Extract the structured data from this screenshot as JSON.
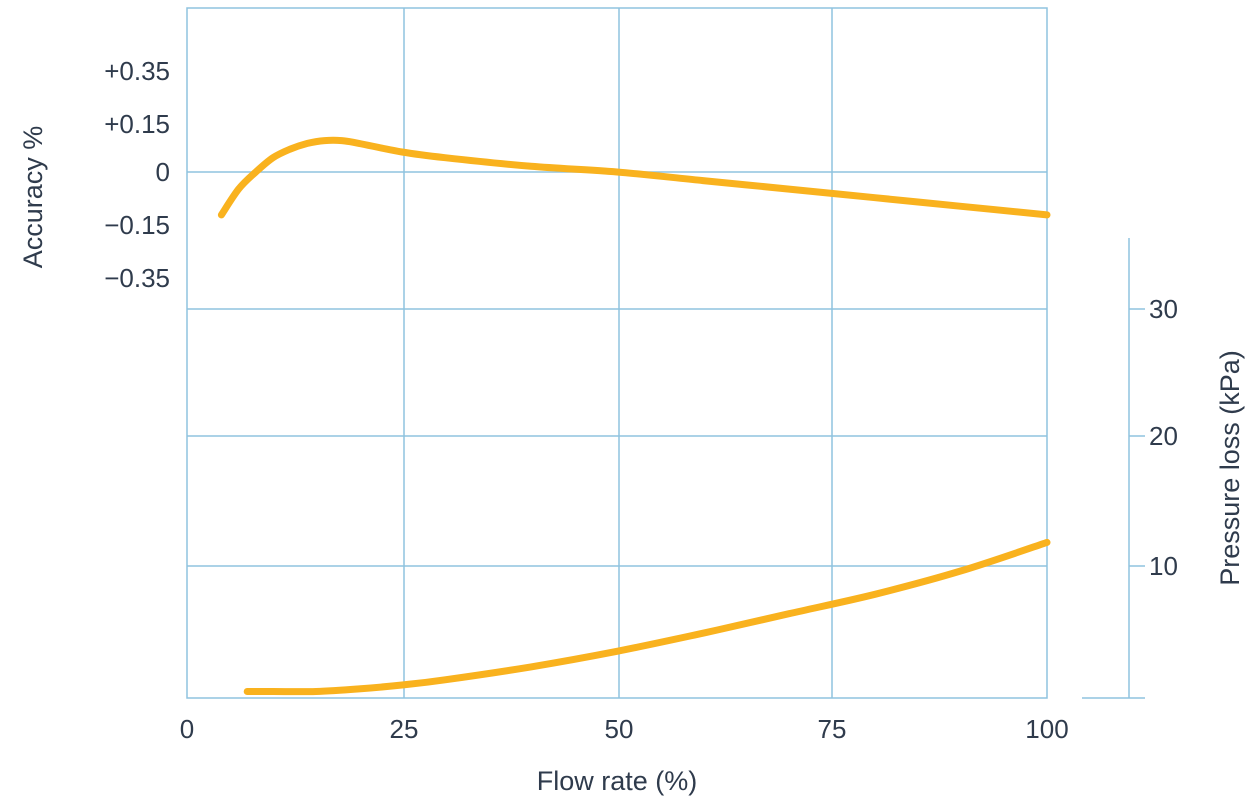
{
  "chart_data": {
    "type": "line",
    "title": "",
    "xlabel": "Flow rate (%)",
    "x_ticks": [
      "0",
      "25",
      "50",
      "75",
      "100"
    ],
    "xlim": [
      0,
      100
    ],
    "ylabel_left": "Accuracy %",
    "y_left_ticks": [
      {
        "label": "+0.35",
        "value": 0.35
      },
      {
        "label": "+0.15",
        "value": 0.15
      },
      {
        "label": "0",
        "value": 0
      },
      {
        "label": "−0.15",
        "value": -0.15
      },
      {
        "label": "−0.35",
        "value": -0.35
      }
    ],
    "ylabel_right": "Pressure loss (kPa)",
    "y_right_ticks": [
      "30",
      "20",
      "10"
    ],
    "ylim_right": [
      0,
      30
    ],
    "grid": true,
    "line_color": "#f9b21e",
    "grid_color": "#8fc3df",
    "series": [
      {
        "axis": "left",
        "x": [
          4,
          6,
          8,
          10,
          12,
          14,
          16,
          18,
          20,
          25,
          30,
          40,
          50,
          60,
          70,
          80,
          90,
          100
        ],
        "y": [
          -0.15,
          -0.06,
          0.0,
          0.05,
          0.08,
          0.1,
          0.11,
          0.11,
          0.1,
          0.07,
          0.05,
          0.02,
          0.0,
          -0.03,
          -0.06,
          -0.09,
          -0.12,
          -0.15
        ]
      },
      {
        "axis": "right",
        "x": [
          7,
          10,
          15,
          20,
          25,
          30,
          40,
          50,
          60,
          70,
          80,
          90,
          100
        ],
        "y": [
          0.5,
          0.5,
          0.5,
          0.7,
          1.0,
          1.4,
          2.4,
          3.6,
          5.0,
          6.5,
          8.0,
          9.8,
          12.0
        ]
      }
    ]
  }
}
